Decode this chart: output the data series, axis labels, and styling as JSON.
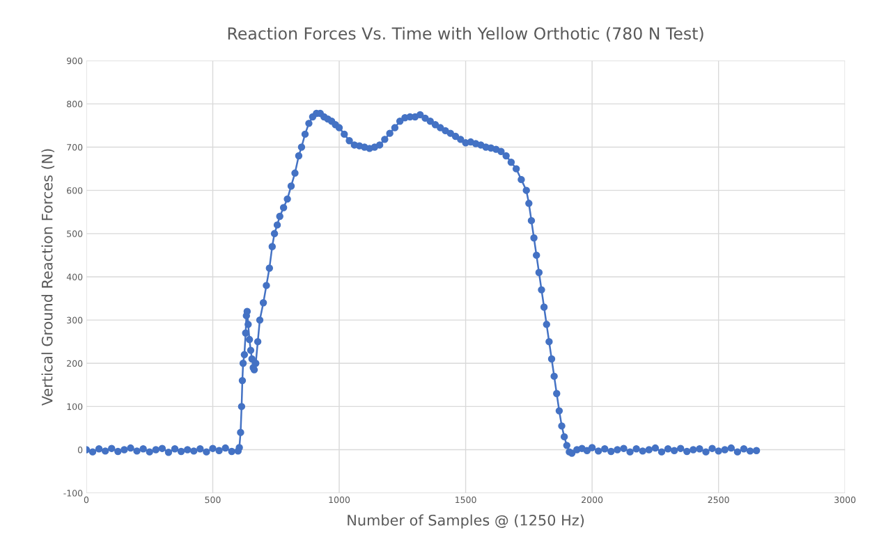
{
  "chart_data": {
    "type": "line",
    "title": "Reaction Forces Vs. Time with Yellow Orthotic (780 N Test)",
    "xlabel": "Number of Samples @ (1250 Hz)",
    "ylabel": "Vertical Ground Reaction Forces (N)",
    "xlim": [
      0,
      3000
    ],
    "xticks": [
      0,
      500,
      1000,
      1500,
      2000,
      2500,
      3000
    ],
    "ylim": [
      -100,
      900
    ],
    "yticks": [
      -100,
      0,
      100,
      200,
      300,
      400,
      500,
      600,
      700,
      800,
      900
    ],
    "grid": true,
    "marker": "circle",
    "line_style": "solid",
    "series": [
      {
        "color": "#4472c4",
        "x": [
          0,
          25,
          50,
          75,
          100,
          125,
          150,
          175,
          200,
          225,
          250,
          275,
          300,
          325,
          350,
          375,
          400,
          425,
          450,
          475,
          500,
          525,
          550,
          575,
          600,
          605,
          610,
          614,
          617,
          620,
          625,
          630,
          633,
          636,
          640,
          645,
          650,
          655,
          660,
          664,
          670,
          678,
          686,
          700,
          712,
          724,
          735,
          744,
          755,
          765,
          780,
          795,
          810,
          825,
          840,
          851,
          865,
          880,
          895,
          910,
          925,
          940,
          955,
          970,
          985,
          1000,
          1020,
          1040,
          1060,
          1080,
          1100,
          1120,
          1140,
          1160,
          1180,
          1200,
          1220,
          1240,
          1260,
          1280,
          1300,
          1320,
          1340,
          1360,
          1380,
          1400,
          1420,
          1440,
          1460,
          1480,
          1500,
          1520,
          1540,
          1560,
          1580,
          1600,
          1620,
          1640,
          1660,
          1680,
          1700,
          1720,
          1740,
          1750,
          1760,
          1770,
          1780,
          1790,
          1800,
          1810,
          1820,
          1830,
          1840,
          1850,
          1860,
          1870,
          1880,
          1890,
          1900,
          1910,
          1920,
          1940,
          1960,
          1980,
          2000,
          2025,
          2050,
          2075,
          2100,
          2125,
          2150,
          2175,
          2200,
          2225,
          2250,
          2275,
          2300,
          2325,
          2350,
          2375,
          2400,
          2425,
          2450,
          2475,
          2500,
          2525,
          2550,
          2575,
          2600,
          2625,
          2650
        ],
        "values": [
          0,
          -5,
          2,
          -3,
          3,
          -4,
          0,
          4,
          -3,
          2,
          -5,
          0,
          3,
          -6,
          2,
          -4,
          0,
          -3,
          2,
          -5,
          3,
          -2,
          4,
          -4,
          -3,
          5,
          40,
          100,
          160,
          200,
          220,
          270,
          310,
          320,
          290,
          255,
          230,
          210,
          190,
          185,
          200,
          250,
          300,
          340,
          380,
          420,
          470,
          500,
          520,
          540,
          560,
          580,
          610,
          640,
          680,
          700,
          730,
          755,
          770,
          778,
          778,
          770,
          765,
          760,
          752,
          745,
          730,
          715,
          705,
          703,
          700,
          697,
          700,
          705,
          718,
          732,
          745,
          760,
          768,
          770,
          770,
          775,
          767,
          760,
          752,
          745,
          738,
          732,
          725,
          718,
          710,
          712,
          708,
          705,
          700,
          698,
          695,
          690,
          680,
          665,
          650,
          625,
          600,
          570,
          530,
          490,
          450,
          410,
          370,
          330,
          290,
          250,
          210,
          170,
          130,
          90,
          55,
          30,
          10,
          -5,
          -8,
          0,
          3,
          -2,
          5,
          -3,
          2,
          -4,
          0,
          3,
          -5,
          2,
          -3,
          0,
          4,
          -5,
          2,
          -2,
          3,
          -4,
          0,
          2,
          -5,
          3,
          -3,
          0,
          4,
          -5,
          2,
          -3,
          -2
        ]
      }
    ]
  }
}
